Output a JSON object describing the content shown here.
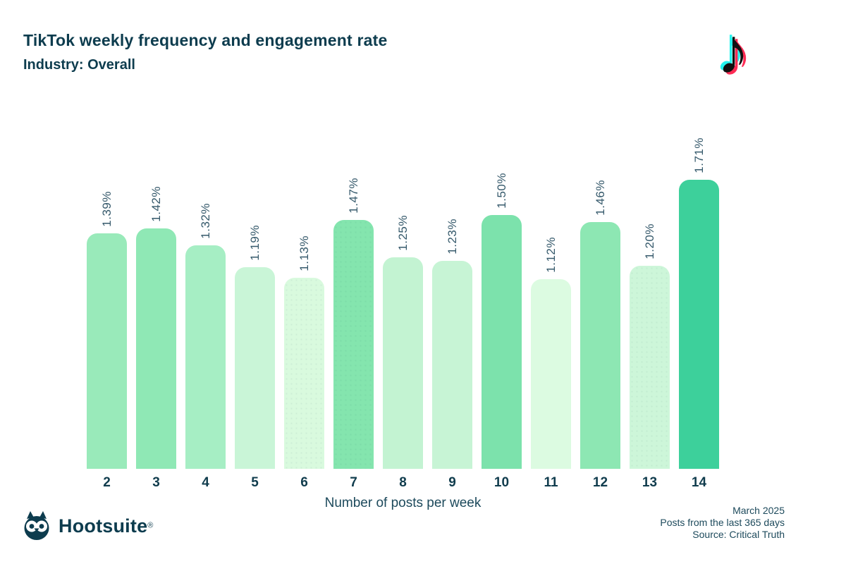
{
  "header": {
    "title": "TikTok weekly frequency and engagement rate",
    "subtitle": "Industry: Overall"
  },
  "tiktok_logo": {
    "glyph": "♪",
    "cyan": "#25f4ee",
    "pink": "#fe2c55",
    "black": "#111111"
  },
  "chart_data": {
    "type": "bar",
    "title": "TikTok weekly frequency and engagement rate",
    "subtitle": "Industry: Overall",
    "xlabel": "Number of posts per week",
    "ylabel": "",
    "categories": [
      "2",
      "3",
      "4",
      "5",
      "6",
      "7",
      "8",
      "9",
      "10",
      "11",
      "12",
      "13",
      "14"
    ],
    "values": [
      1.39,
      1.42,
      1.32,
      1.19,
      1.13,
      1.47,
      1.25,
      1.23,
      1.5,
      1.12,
      1.46,
      1.2,
      1.71
    ],
    "labels": [
      "1.39%",
      "1.42%",
      "1.32%",
      "1.19%",
      "1.13%",
      "1.47%",
      "1.25%",
      "1.23%",
      "1.50%",
      "1.12%",
      "1.46%",
      "1.20%",
      "1.71%"
    ],
    "colors": [
      "#99eaba",
      "#8fe8b5",
      "#a6eec4",
      "#c9f5d7",
      "#d9fade",
      "#84e5ae",
      "#c3f3d2",
      "#c7f4d5",
      "#7ce2ac",
      "#dcfbe1",
      "#8de7b3",
      "#cdf6d9",
      "#3dd09b"
    ],
    "textured_categories": [
      "6",
      "7",
      "13"
    ],
    "ylim": [
      0,
      1.8
    ],
    "grid": false,
    "legend": false
  },
  "footer": {
    "brand": "Hootsuite",
    "registered": "®",
    "meta_lines": [
      "March 2025",
      "Posts from the last 365 days",
      "Source: Critical Truth"
    ]
  },
  "theme": {
    "text_dark": "#0d3c4e",
    "value_label_color": "#35596b",
    "background": "#ffffff"
  }
}
